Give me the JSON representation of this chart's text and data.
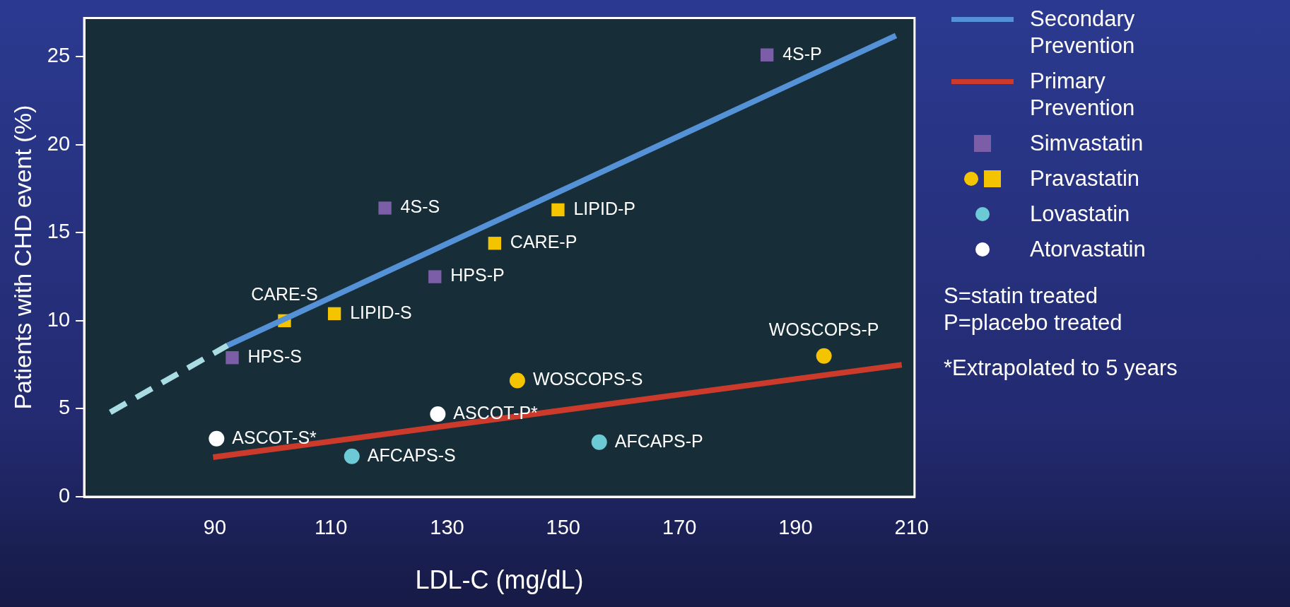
{
  "chart_data": {
    "type": "scatter",
    "xlabel": "LDL-C (mg/dL)",
    "ylabel": "Patients with CHD event (%)",
    "xlim": [
      67.5,
      210.5
    ],
    "xticks": [
      90,
      110,
      130,
      150,
      170,
      190,
      210
    ],
    "ylim": [
      0,
      27.2
    ],
    "yticks": [
      0,
      5,
      10,
      15,
      20,
      25
    ],
    "grid": false,
    "legend": "right",
    "series": [
      {
        "type": "line",
        "color": "#a9dde3",
        "line_style": "dashed",
        "marker": "none",
        "x": [
          72,
          92.2
        ],
        "values": [
          4.8,
          8.6
        ]
      },
      {
        "type": "line",
        "name": "Secondary Prevention",
        "color": "#5591d6",
        "line_style": "solid",
        "marker": "none",
        "x": [
          92.2,
          207.3
        ],
        "values": [
          8.6,
          26.2
        ]
      },
      {
        "type": "line",
        "name": "Primary Prevention",
        "color": "#cc3a2b",
        "line_style": "solid",
        "marker": "none",
        "x": [
          89.7,
          208.3
        ],
        "values": [
          2.25,
          7.5
        ]
      },
      {
        "name": "Simvastatin",
        "color": "#7b5ea7",
        "marker": "square",
        "x": [
          185.1,
          119.3,
          127.9,
          93
        ],
        "values": [
          25.1,
          16.4,
          12.5,
          7.9
        ]
      },
      {
        "name": "Pravastatin",
        "color": "#f5c400",
        "marker": "square",
        "x": [
          149.1,
          138.2,
          110.6,
          102
        ],
        "values": [
          16.3,
          14.4,
          10.4,
          10
        ]
      },
      {
        "color": "#f5c400",
        "marker": "circle",
        "x": [
          194.9,
          142.1
        ],
        "values": [
          8,
          6.6
        ]
      },
      {
        "name": "Lovastatin",
        "color": "#6ccad6",
        "marker": "circle",
        "x": [
          113.6,
          156.2
        ],
        "values": [
          2.3,
          3.1
        ]
      },
      {
        "name": "Atorvastatin",
        "color": "#ffffff",
        "marker": "circle",
        "x": [
          128.4,
          90.3
        ],
        "values": [
          4.7,
          3.3
        ]
      }
    ],
    "annotations": [
      {
        "text": "4S-P",
        "x": 185.1,
        "y": 25.1
      },
      {
        "text": "4S-S",
        "x": 119.3,
        "y": 16.4
      },
      {
        "text": "LIPID-P",
        "x": 149.1,
        "y": 16.3
      },
      {
        "text": "CARE-P",
        "x": 138.2,
        "y": 14.4
      },
      {
        "text": "HPS-P",
        "x": 127.9,
        "y": 12.5
      },
      {
        "text": "LIPID-S",
        "x": 110.6,
        "y": 10.4
      },
      {
        "text": "CARE-S",
        "x": 102,
        "y": 10
      },
      {
        "text": "HPS-S",
        "x": 93,
        "y": 7.9
      },
      {
        "text": "WOSCOPS-P",
        "x": 194.9,
        "y": 8
      },
      {
        "text": "WOSCOPS-S",
        "x": 142.1,
        "y": 6.6
      },
      {
        "text": "ASCOT-P*",
        "x": 128.4,
        "y": 4.7
      },
      {
        "text": "ASCOT-S*",
        "x": 90.3,
        "y": 3.3
      },
      {
        "text": "AFCAPS-S",
        "x": 113.6,
        "y": 2.3
      },
      {
        "text": "AFCAPS-P",
        "x": 156.2,
        "y": 3.1
      },
      "S=statin treated",
      "P=placebo treated",
      "*Extrapolated to 5 years"
    ]
  }
}
